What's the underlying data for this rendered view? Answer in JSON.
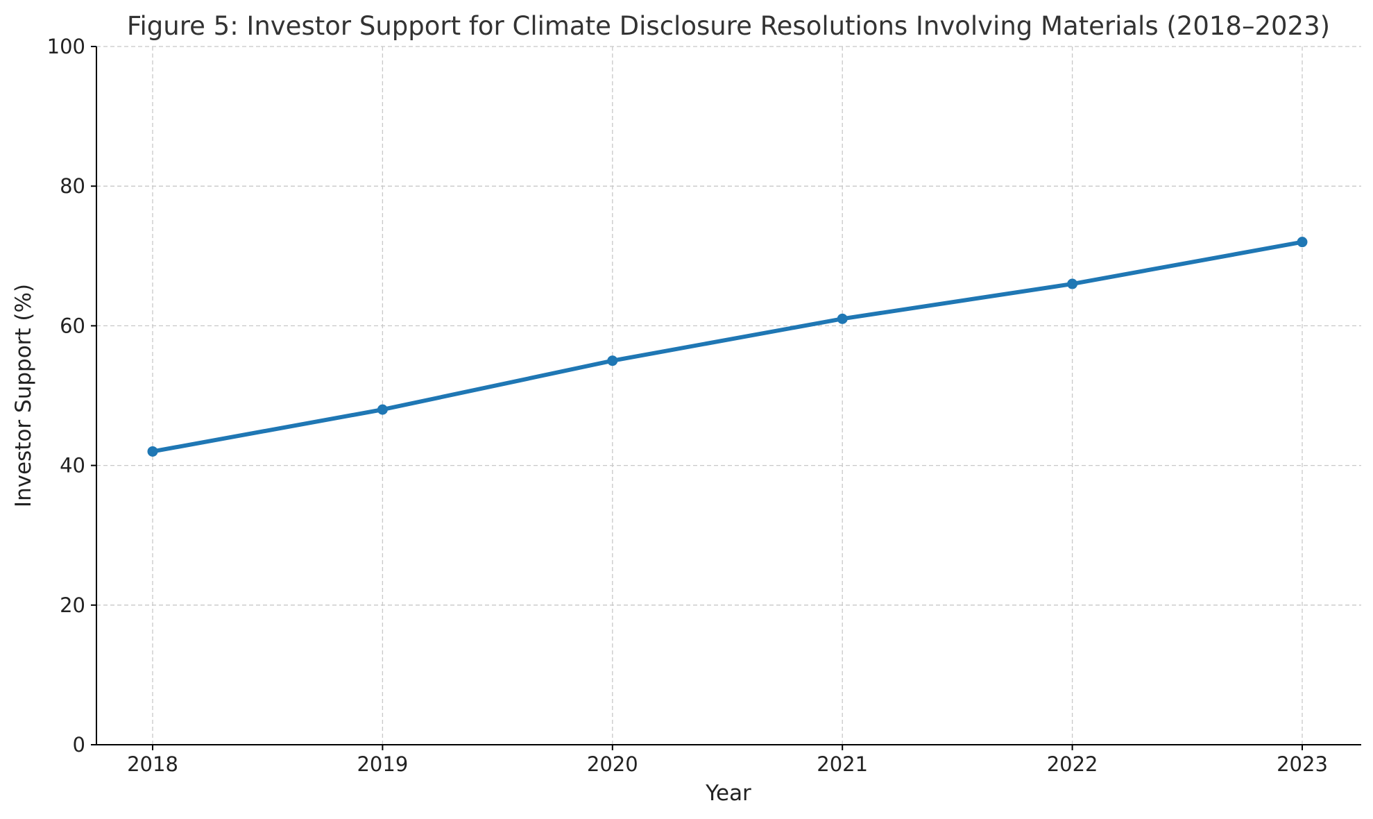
{
  "chart_data": {
    "type": "line",
    "title": "Figure 5: Investor Support for Climate Disclosure Resolutions Involving Materials (2018–2023)",
    "xlabel": "Year",
    "ylabel": "Investor Support (%)",
    "x": [
      "2018",
      "2019",
      "2020",
      "2021",
      "2022",
      "2023"
    ],
    "series": [
      {
        "values": [
          42,
          48,
          55,
          61,
          66,
          72
        ],
        "color": "#1f77b4"
      }
    ],
    "ylim": [
      0,
      100
    ],
    "yticks": [
      0,
      20,
      40,
      60,
      80,
      100
    ],
    "grid": true
  }
}
